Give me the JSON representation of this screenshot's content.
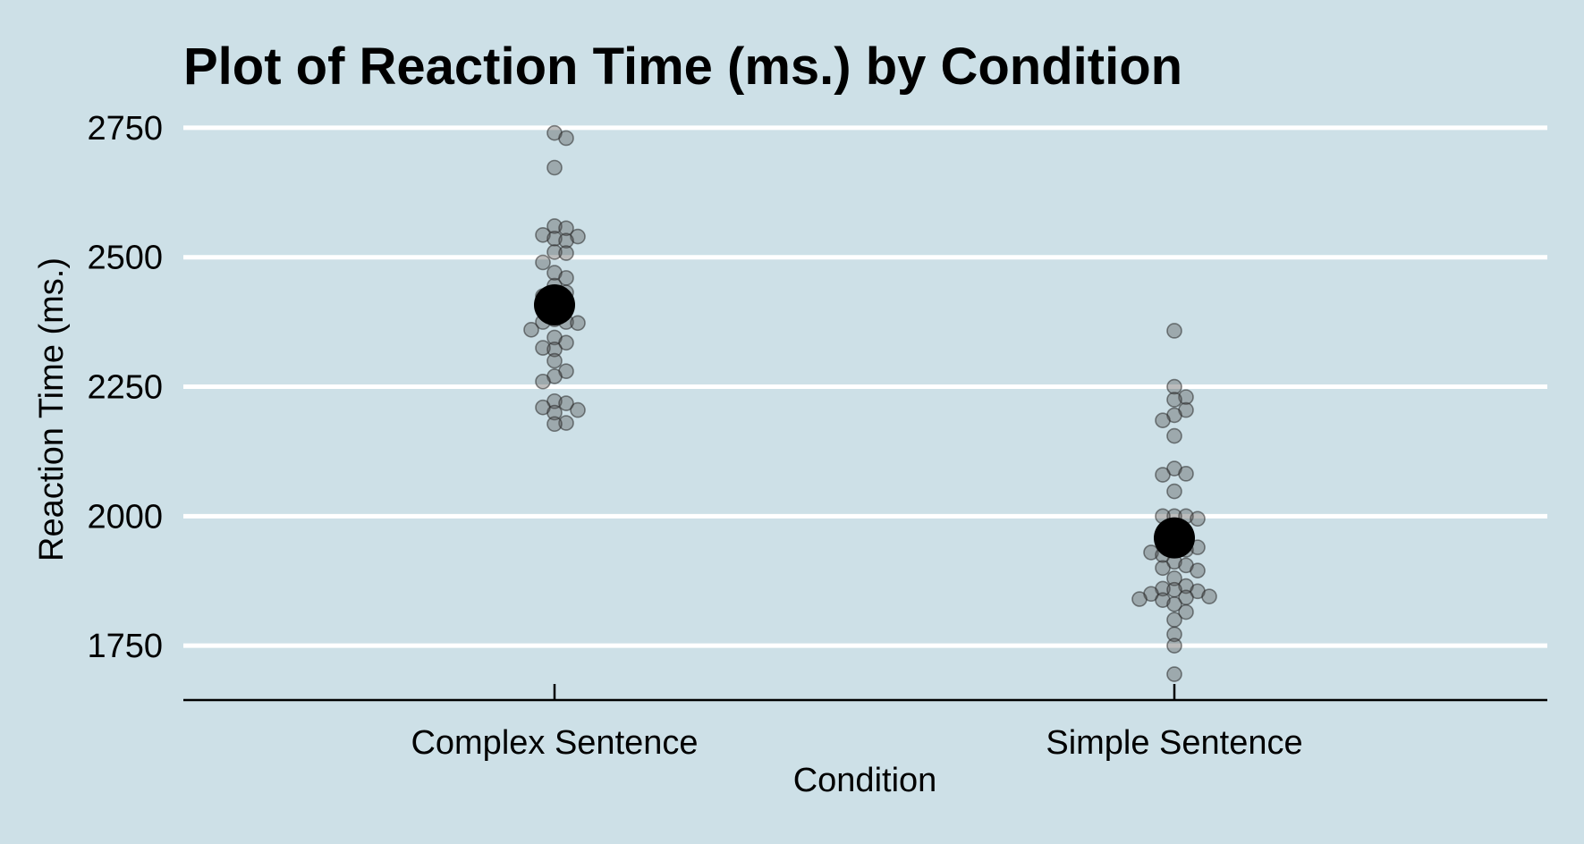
{
  "chart_data": {
    "type": "scatter",
    "title": "Plot of Reaction Time (ms.) by Condition",
    "xlabel": "Condition",
    "ylabel": "Reaction Time (ms.)",
    "categories": [
      "Complex Sentence",
      "Simple Sentence"
    ],
    "yticks": [
      1750,
      2000,
      2250,
      2500,
      2750
    ],
    "ylim": [
      1645,
      2755
    ],
    "grid": "horizontal",
    "legend": "none",
    "colors": {
      "background": "#cde0e7",
      "gridline": "#ffffff",
      "raw_point": "#505050",
      "mean_point": "#000000"
    },
    "series": [
      {
        "category": "Complex Sentence",
        "mean": 2408,
        "values": [
          2740,
          2730,
          2673,
          2560,
          2556,
          2543,
          2540,
          2536,
          2532,
          2510,
          2508,
          2490,
          2470,
          2460,
          2445,
          2432,
          2425,
          2415,
          2400,
          2380,
          2375,
          2375,
          2373,
          2360,
          2345,
          2335,
          2325,
          2322,
          2300,
          2280,
          2270,
          2260,
          2222,
          2218,
          2210,
          2205,
          2200,
          2180,
          2178
        ]
      },
      {
        "category": "Simple Sentence",
        "mean": 1958,
        "values": [
          2358,
          2250,
          2230,
          2225,
          2205,
          2195,
          2185,
          2155,
          2092,
          2082,
          2080,
          2048,
          2000,
          2000,
          2000,
          1995,
          1970,
          1960,
          1950,
          1942,
          1940,
          1935,
          1930,
          1925,
          1912,
          1905,
          1900,
          1895,
          1880,
          1865,
          1860,
          1858,
          1855,
          1850,
          1845,
          1843,
          1840,
          1838,
          1830,
          1815,
          1800,
          1772,
          1750,
          1695
        ]
      }
    ]
  }
}
